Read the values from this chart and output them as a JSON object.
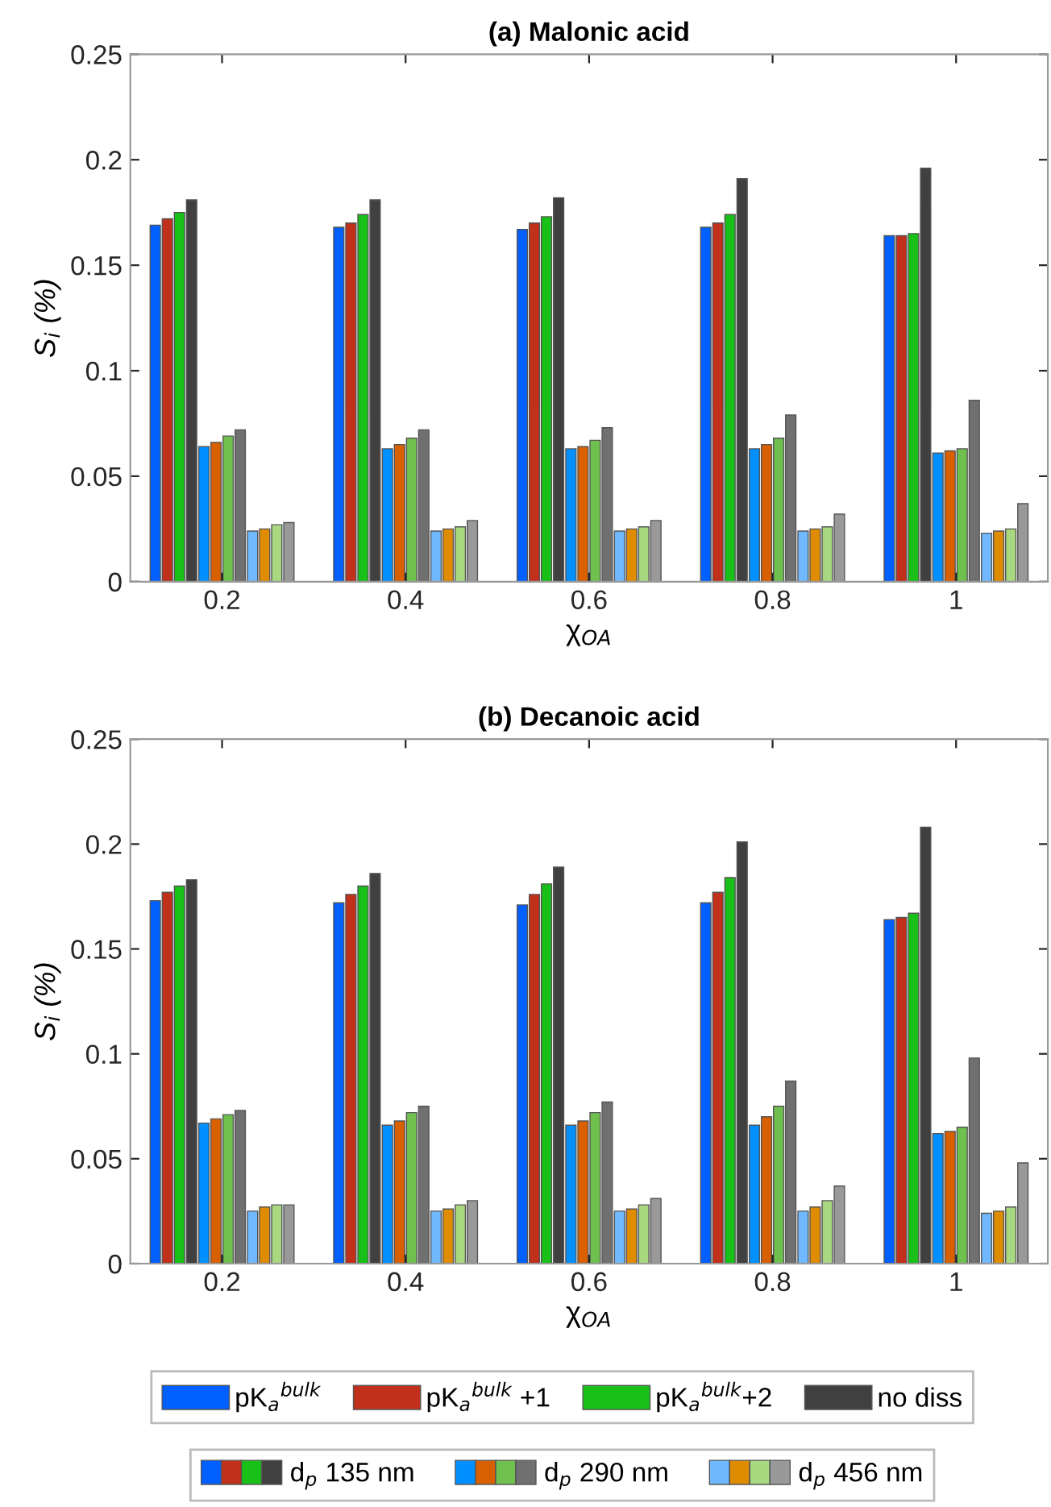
{
  "chart_data": [
    {
      "type": "bar",
      "title": "(a) Malonic acid",
      "xlabel": "χ$_{OA}$",
      "ylabel": "S$_{i}$ (%)",
      "categories": [
        "0.2",
        "0.4",
        "0.6",
        "0.8",
        "1"
      ],
      "ylim": [
        0,
        0.25
      ],
      "yticks": [
        0,
        0.05,
        0.1,
        0.15,
        0.2,
        0.25
      ],
      "grid": false,
      "legend": false,
      "series": [
        {
          "color": "#0060ff",
          "values": [
            0.169,
            0.168,
            0.167,
            0.168,
            0.164
          ]
        },
        {
          "color": "#c0301a",
          "values": [
            0.172,
            0.17,
            0.17,
            0.17,
            0.164
          ]
        },
        {
          "color": "#18c018",
          "values": [
            0.175,
            0.174,
            0.173,
            0.174,
            0.165
          ]
        },
        {
          "color": "#404040",
          "values": [
            0.181,
            0.181,
            0.182,
            0.191,
            0.196
          ]
        },
        {
          "color": "#0090ff",
          "values": [
            0.064,
            0.063,
            0.063,
            0.063,
            0.061
          ]
        },
        {
          "color": "#d86000",
          "values": [
            0.066,
            0.065,
            0.064,
            0.065,
            0.062
          ]
        },
        {
          "color": "#70c050",
          "values": [
            0.069,
            0.068,
            0.067,
            0.068,
            0.063
          ]
        },
        {
          "color": "#707070",
          "values": [
            0.072,
            0.072,
            0.073,
            0.079,
            0.086
          ]
        },
        {
          "color": "#70b8ff",
          "values": [
            0.024,
            0.024,
            0.024,
            0.024,
            0.023
          ]
        },
        {
          "color": "#e08c00",
          "values": [
            0.025,
            0.025,
            0.025,
            0.025,
            0.024
          ]
        },
        {
          "color": "#a8d880",
          "values": [
            0.027,
            0.026,
            0.026,
            0.026,
            0.025
          ]
        },
        {
          "color": "#999999",
          "values": [
            0.028,
            0.029,
            0.029,
            0.032,
            0.037
          ]
        }
      ]
    },
    {
      "type": "bar",
      "title": "(b) Decanoic acid",
      "xlabel": "χ$_{OA}$",
      "ylabel": "S$_{i}$ (%)",
      "categories": [
        "0.2",
        "0.4",
        "0.6",
        "0.8",
        "1"
      ],
      "ylim": [
        0,
        0.25
      ],
      "yticks": [
        0,
        0.05,
        0.1,
        0.15,
        0.2,
        0.25
      ],
      "grid": false,
      "legend": "bottom",
      "annotations": [
        "d$_{p}$ 135 nm",
        "d$_{p}$ 290 nm",
        "d$_{p}$ 456 nm"
      ],
      "series": [
        {
          "name": "pK$_{a}$$^{bulk}$",
          "color": "#0060ff",
          "values": [
            0.173,
            0.172,
            0.171,
            0.172,
            0.164
          ]
        },
        {
          "name": "pK$_{a}$$^{bulk}$ +1",
          "color": "#c0301a",
          "values": [
            0.177,
            0.176,
            0.176,
            0.177,
            0.165
          ]
        },
        {
          "name": "pK$_{a}$$^{bulk}$+2",
          "color": "#18c018",
          "values": [
            0.18,
            0.18,
            0.181,
            0.184,
            0.167
          ]
        },
        {
          "name": "no diss",
          "color": "#404040",
          "values": [
            0.183,
            0.186,
            0.189,
            0.201,
            0.208
          ]
        },
        {
          "color": "#0090ff",
          "values": [
            0.067,
            0.066,
            0.066,
            0.066,
            0.062
          ]
        },
        {
          "color": "#d86000",
          "values": [
            0.069,
            0.068,
            0.068,
            0.07,
            0.063
          ]
        },
        {
          "color": "#70c050",
          "values": [
            0.071,
            0.072,
            0.072,
            0.075,
            0.065
          ]
        },
        {
          "color": "#707070",
          "values": [
            0.073,
            0.075,
            0.077,
            0.087,
            0.098
          ]
        },
        {
          "color": "#70b8ff",
          "values": [
            0.025,
            0.025,
            0.025,
            0.025,
            0.024
          ]
        },
        {
          "color": "#e08c00",
          "values": [
            0.027,
            0.026,
            0.026,
            0.027,
            0.025
          ]
        },
        {
          "color": "#a8d880",
          "values": [
            0.028,
            0.028,
            0.028,
            0.03,
            0.027
          ]
        },
        {
          "color": "#999999",
          "values": [
            0.028,
            0.03,
            0.031,
            0.037,
            0.048
          ]
        }
      ]
    }
  ]
}
